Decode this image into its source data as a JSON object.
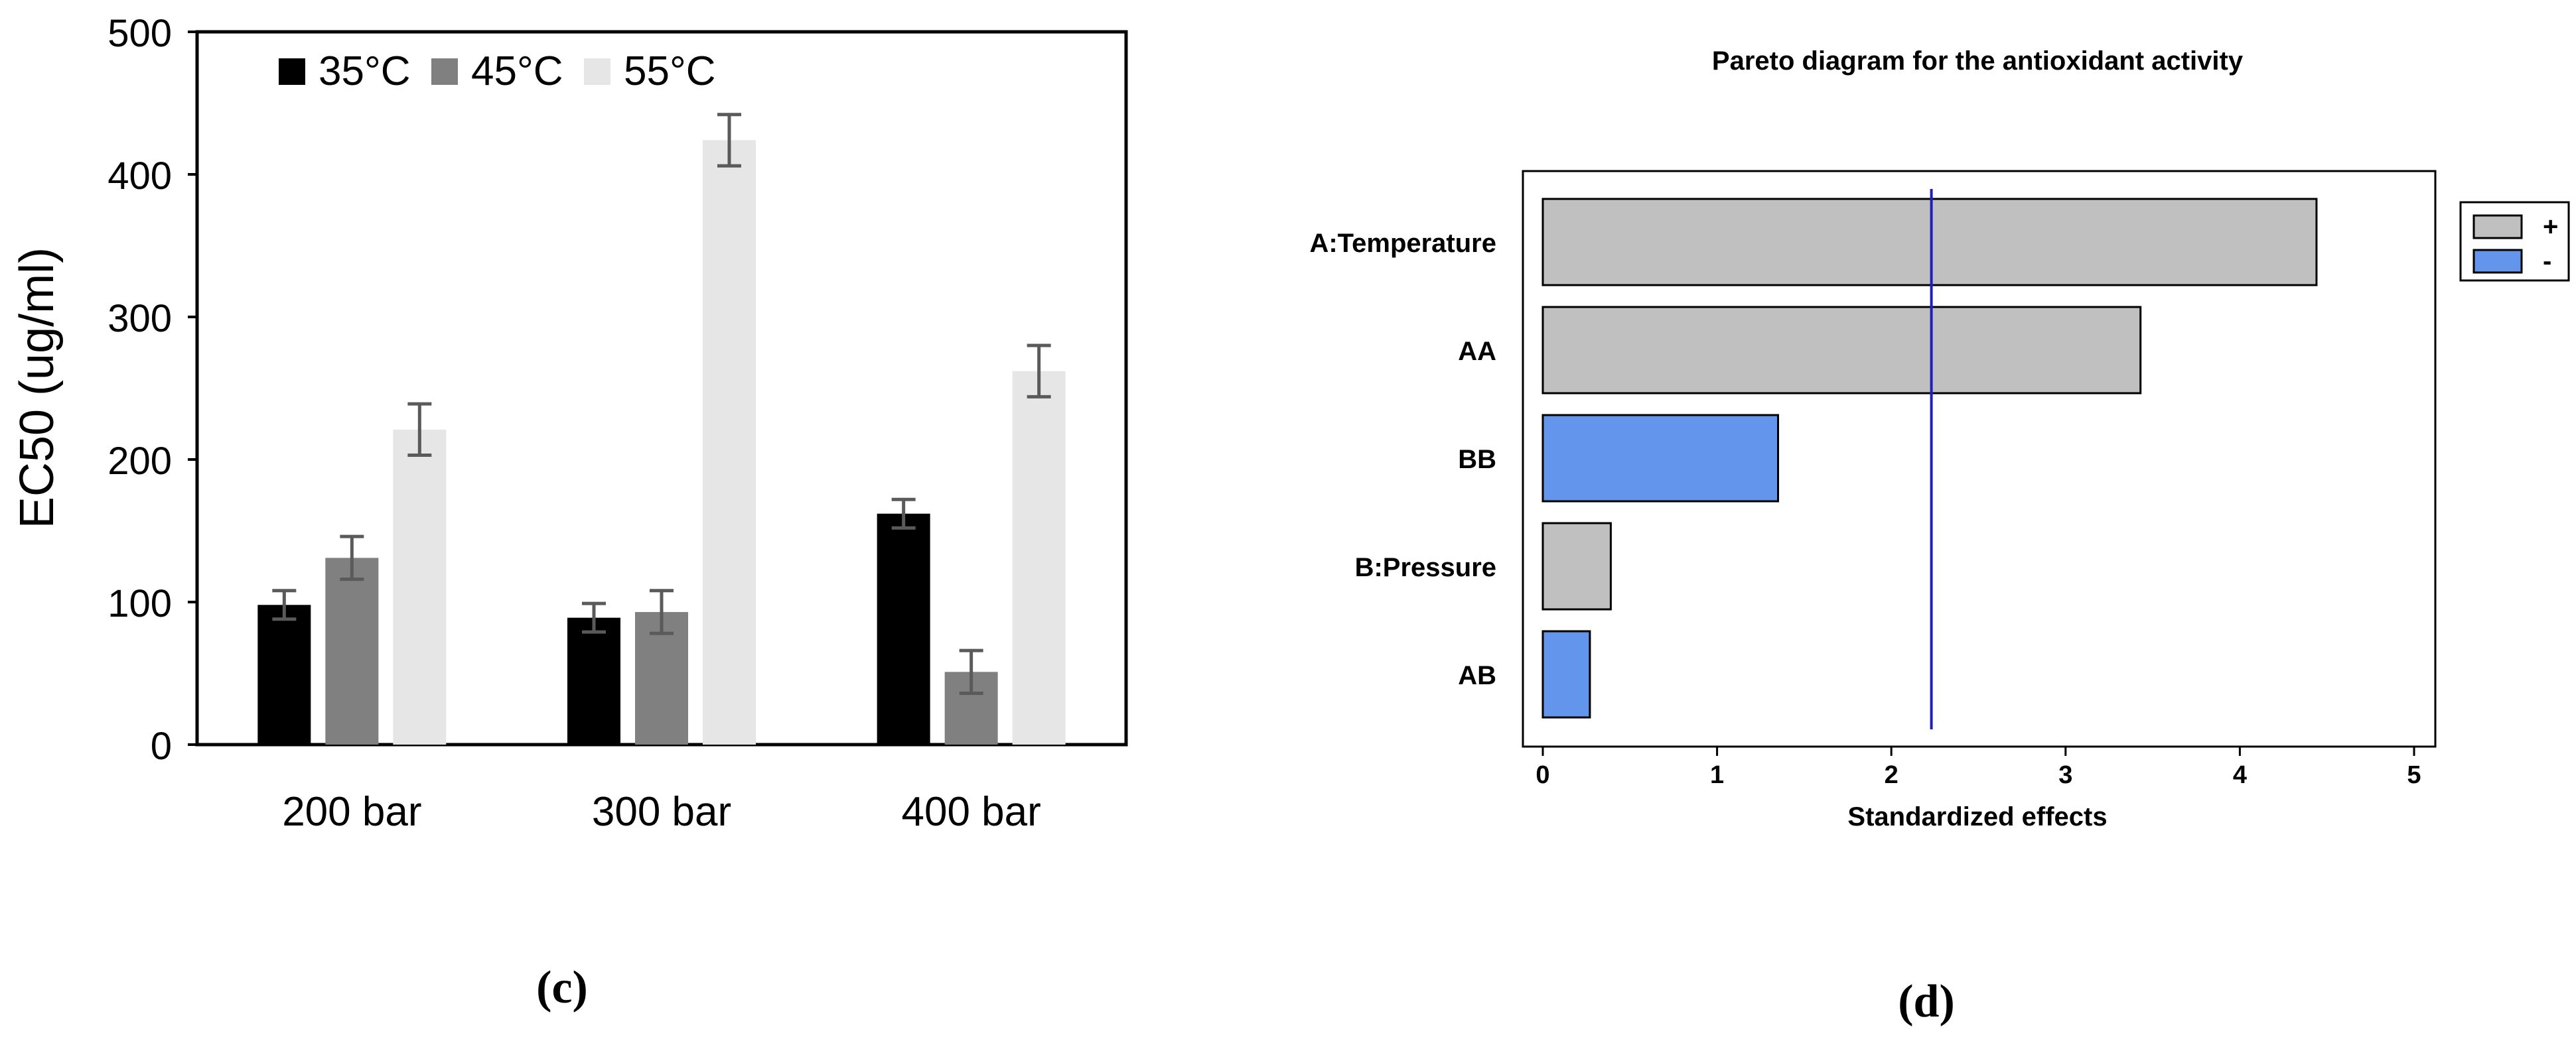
{
  "chart_data": [
    {
      "type": "bar",
      "panel_label": "(c)",
      "title": "",
      "xlabel": "",
      "ylabel": "EC50 (ug/ml)",
      "ylim": [
        0,
        500
      ],
      "yticks": [
        0,
        100,
        200,
        300,
        400,
        500
      ],
      "categories": [
        "200 bar",
        "300 bar",
        "400 bar"
      ],
      "legend_position": "top-left",
      "grid": false,
      "series": [
        {
          "name": "35°C",
          "color": "#000000",
          "values": [
            98,
            89,
            162
          ],
          "errors": [
            10,
            10,
            10
          ]
        },
        {
          "name": "45°C",
          "color": "#808080",
          "values": [
            131,
            93,
            51
          ],
          "errors": [
            15,
            15,
            15
          ]
        },
        {
          "name": "55°C",
          "color": "#e6e6e6",
          "values": [
            221,
            424,
            262
          ],
          "errors": [
            18,
            18,
            18
          ]
        }
      ],
      "errorbar_color": "#5a5a5a"
    },
    {
      "type": "bar",
      "orientation": "horizontal",
      "panel_label": "(d)",
      "title": "Pareto diagram for the antioxidant activity",
      "xlabel": "Standardized effects",
      "ylabel": "",
      "xlim": [
        0,
        5
      ],
      "xticks": [
        0,
        1,
        2,
        3,
        4,
        5
      ],
      "categories": [
        "A:Temperature",
        "AA",
        "BB",
        "B:Pressure",
        "AB"
      ],
      "values": [
        4.44,
        3.43,
        1.35,
        0.39,
        0.27
      ],
      "signs": [
        "+",
        "+",
        "-",
        "+",
        "-"
      ],
      "reference_line": 2.23,
      "reference_color": "#1f1fbf",
      "legend": [
        {
          "label": "+",
          "color": "#c0c0c0"
        },
        {
          "label": "-",
          "color": "#6495ed"
        }
      ],
      "legend_position": "right",
      "grid": false
    }
  ]
}
